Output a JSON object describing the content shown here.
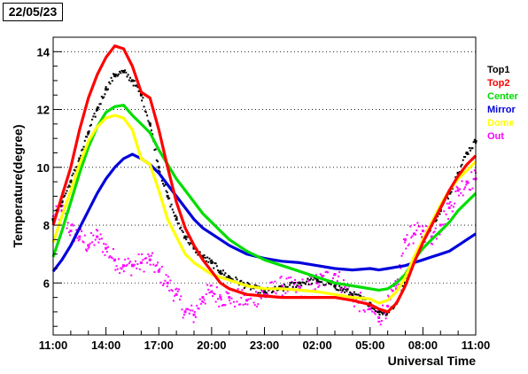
{
  "date_label": "22/05/23",
  "chart_data": {
    "type": "scatter",
    "title": "",
    "xlabel": "Universal Time",
    "ylabel": "Temperature(degree)",
    "xlim": [
      0,
      24
    ],
    "ylim": [
      4.2,
      14.5
    ],
    "x_unit": "hours after 11:00 UT",
    "x_ticks": [
      0,
      3,
      6,
      9,
      12,
      15,
      18,
      21,
      24
    ],
    "x_tick_labels": [
      "11:00",
      "14:00",
      "17:00",
      "20:00",
      "23:00",
      "02:00",
      "05:00",
      "08:00",
      "11:00"
    ],
    "y_ticks": [
      6,
      8,
      10,
      12,
      14
    ],
    "y_tick_labels": [
      "6",
      "8",
      "10",
      "12",
      "14"
    ],
    "grid": "horizontal dotted",
    "legend_position": "right",
    "series": [
      {
        "name": "Top1",
        "color": "#000000",
        "style": "points",
        "x": [
          0,
          0.5,
          1,
          1.5,
          2,
          2.5,
          3,
          3.5,
          4,
          4.5,
          5,
          5.5,
          6,
          6.5,
          7,
          7.5,
          8,
          8.5,
          9,
          9.5,
          10,
          11,
          12,
          13,
          14,
          15,
          16,
          17,
          18,
          18.5,
          19,
          19.5,
          20,
          20.5,
          21,
          21.5,
          22,
          22.5,
          23,
          23.5,
          24
        ],
        "y": [
          8.2,
          8.8,
          9.5,
          10.3,
          11.2,
          12.0,
          12.7,
          13.2,
          13.3,
          13.0,
          12.5,
          11.5,
          10.0,
          9.0,
          8.2,
          7.6,
          7.2,
          6.9,
          6.7,
          6.4,
          6.2,
          5.9,
          5.7,
          5.8,
          6.0,
          6.1,
          5.9,
          5.6,
          5.3,
          5.0,
          5.0,
          5.3,
          6.0,
          6.8,
          7.5,
          8.0,
          8.5,
          9.1,
          9.8,
          10.5,
          10.9
        ]
      },
      {
        "name": "Top2",
        "color": "#ff0000",
        "style": "line",
        "x": [
          0,
          0.5,
          1,
          1.5,
          2,
          2.5,
          3,
          3.5,
          4,
          4.5,
          5,
          5.5,
          6,
          6.5,
          7,
          7.5,
          8,
          8.5,
          9,
          9.5,
          10,
          11,
          12,
          13,
          14,
          15,
          16,
          17,
          18,
          18.5,
          19,
          19.5,
          20,
          20.5,
          21,
          21.5,
          22,
          22.5,
          23,
          23.5,
          24
        ],
        "y": [
          8.0,
          9.0,
          10.0,
          11.3,
          12.4,
          13.2,
          13.8,
          14.2,
          14.1,
          13.5,
          12.6,
          12.4,
          11.3,
          10.0,
          8.8,
          7.9,
          7.3,
          6.8,
          6.4,
          6.0,
          5.8,
          5.6,
          5.55,
          5.5,
          5.5,
          5.5,
          5.5,
          5.4,
          5.25,
          5.1,
          5.0,
          5.3,
          5.9,
          6.7,
          7.4,
          8.0,
          8.6,
          9.2,
          9.7,
          10.1,
          10.4
        ]
      },
      {
        "name": "Center",
        "color": "#00dd00",
        "style": "line",
        "x": [
          0,
          0.5,
          1,
          1.5,
          2,
          2.5,
          3,
          3.5,
          4,
          4.5,
          5,
          5.5,
          6,
          6.5,
          7,
          7.5,
          8,
          8.5,
          9,
          9.5,
          10,
          11,
          12,
          13,
          14,
          15,
          16,
          17,
          18,
          18.5,
          19,
          19.5,
          20,
          20.5,
          21,
          21.5,
          22,
          22.5,
          23,
          23.5,
          24
        ],
        "y": [
          6.9,
          7.8,
          8.8,
          9.8,
          10.7,
          11.4,
          11.9,
          12.1,
          12.15,
          11.8,
          11.5,
          11.2,
          10.6,
          10.1,
          9.6,
          9.2,
          8.8,
          8.4,
          8.1,
          7.8,
          7.5,
          7.1,
          6.8,
          6.6,
          6.4,
          6.2,
          6.0,
          5.9,
          5.8,
          5.75,
          5.8,
          6.0,
          6.3,
          6.8,
          7.2,
          7.5,
          7.8,
          8.1,
          8.5,
          8.8,
          9.1
        ]
      },
      {
        "name": "Mirror",
        "color": "#0000dd",
        "style": "line",
        "x": [
          0,
          0.5,
          1,
          1.5,
          2,
          2.5,
          3,
          3.5,
          4,
          4.5,
          5,
          5.5,
          6,
          6.5,
          7,
          7.5,
          8,
          8.5,
          9,
          9.5,
          10,
          11,
          12,
          13,
          14,
          15,
          16,
          17,
          18,
          18.5,
          19,
          19.5,
          20,
          20.5,
          21,
          21.5,
          22,
          22.5,
          23,
          23.5,
          24
        ],
        "y": [
          6.4,
          6.8,
          7.3,
          7.9,
          8.5,
          9.1,
          9.6,
          10.0,
          10.3,
          10.45,
          10.3,
          10.1,
          9.8,
          9.4,
          9.0,
          8.6,
          8.2,
          7.9,
          7.7,
          7.5,
          7.3,
          7.0,
          6.85,
          6.75,
          6.7,
          6.6,
          6.5,
          6.45,
          6.5,
          6.45,
          6.5,
          6.55,
          6.6,
          6.7,
          6.8,
          6.9,
          7.0,
          7.1,
          7.3,
          7.5,
          7.7
        ]
      },
      {
        "name": "Dome",
        "color": "#ffff00",
        "style": "line",
        "x": [
          0,
          0.5,
          1,
          1.5,
          2,
          2.5,
          3,
          3.5,
          4,
          4.5,
          5,
          5.5,
          6,
          6.5,
          7,
          7.5,
          8,
          8.5,
          9,
          9.5,
          10,
          11,
          12,
          13,
          14,
          15,
          16,
          17,
          18,
          18.5,
          19,
          19.5,
          20,
          20.5,
          21,
          21.5,
          22,
          22.5,
          23,
          23.5,
          24
        ],
        "y": [
          7.4,
          8.3,
          9.2,
          10.1,
          10.9,
          11.4,
          11.7,
          11.8,
          11.7,
          11.3,
          10.3,
          10.1,
          9.2,
          8.2,
          7.6,
          7.0,
          6.7,
          6.5,
          6.3,
          6.2,
          6.1,
          5.9,
          5.8,
          5.8,
          5.75,
          5.7,
          5.6,
          5.5,
          5.45,
          5.3,
          5.4,
          5.7,
          6.2,
          6.9,
          7.5,
          8.1,
          8.7,
          9.2,
          9.6,
          9.9,
          10.2
        ]
      },
      {
        "name": "Out",
        "color": "#ff00ff",
        "style": "points",
        "x": [
          0,
          0.5,
          1,
          1.5,
          2,
          2.5,
          3,
          3.5,
          4,
          4.5,
          5,
          5.5,
          6,
          6.5,
          7,
          7.5,
          8,
          8.5,
          9,
          9.5,
          10,
          11,
          12,
          13,
          14,
          15,
          16,
          17,
          18,
          18.5,
          19,
          19.5,
          20,
          20.5,
          21,
          21.5,
          22,
          22.5,
          23,
          23.5,
          24
        ],
        "y": [
          8.2,
          8.5,
          7.8,
          7.6,
          7.3,
          7.6,
          7.2,
          6.8,
          6.6,
          6.6,
          6.7,
          6.8,
          6.4,
          6.0,
          5.6,
          5.0,
          4.9,
          5.5,
          5.7,
          5.5,
          5.5,
          5.4,
          5.6,
          5.9,
          5.8,
          6.0,
          6.3,
          5.5,
          5.1,
          4.8,
          5.2,
          5.8,
          7.5,
          7.7,
          7.8,
          7.6,
          8.0,
          8.6,
          9.2,
          9.5,
          9.6
        ]
      }
    ]
  }
}
